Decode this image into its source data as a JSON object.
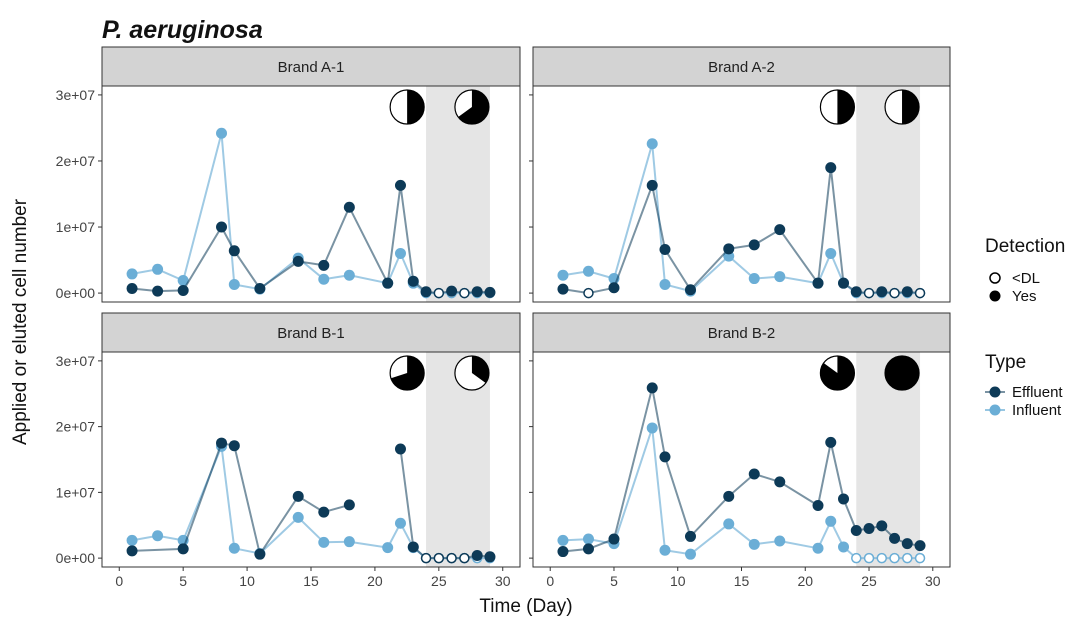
{
  "title": "P. aeruginosa",
  "xlabel": "Time (Day)",
  "ylabel": "Applied or eluted cell number",
  "colors": {
    "Effluent": "#0d3a57",
    "Influent": "#6baed6",
    "shade": "#e5e5e5",
    "strip": "#d3d3d3"
  },
  "legend": {
    "detection": {
      "title": "Detection",
      "items": [
        "<DL",
        "Yes"
      ]
    },
    "type": {
      "title": "Type",
      "items": [
        "Effluent",
        "Influent"
      ]
    }
  },
  "chart_data": {
    "type": "line",
    "xlim": [
      0,
      30
    ],
    "ylim": [
      0,
      30000000
    ],
    "xticks": [
      0,
      5,
      10,
      15,
      20,
      25,
      30
    ],
    "yticks": [
      0,
      10000000,
      20000000,
      30000000
    ],
    "ytick_labels": [
      "0e+00",
      "1e+07",
      "2e+07",
      "3e+07"
    ],
    "shaded_region": [
      24,
      29
    ],
    "grid": false,
    "legend_position": "right",
    "panels": [
      {
        "label": "Brand A-1",
        "pies": [
          0.5,
          0.65
        ],
        "series": [
          {
            "name": "Effluent",
            "points": [
              {
                "x": 1,
                "y": 700000,
                "d": "Yes"
              },
              {
                "x": 3,
                "y": 300000,
                "d": "Yes"
              },
              {
                "x": 5,
                "y": 400000,
                "d": "Yes"
              },
              {
                "x": 8,
                "y": 10000000,
                "d": "Yes"
              },
              {
                "x": 9,
                "y": 6400000,
                "d": "Yes"
              },
              {
                "x": 11,
                "y": 700000,
                "d": "Yes"
              },
              {
                "x": 14,
                "y": 4800000,
                "d": "Yes"
              },
              {
                "x": 16,
                "y": 4200000,
                "d": "Yes"
              },
              {
                "x": 18,
                "y": 13000000,
                "d": "Yes"
              },
              {
                "x": 21,
                "y": 1500000,
                "d": "Yes"
              },
              {
                "x": 22,
                "y": 16300000,
                "d": "Yes"
              },
              {
                "x": 23,
                "y": 1800000,
                "d": "Yes"
              },
              {
                "x": 24,
                "y": 200000,
                "d": "Yes"
              },
              {
                "x": 25,
                "y": 0,
                "d": "<DL"
              },
              {
                "x": 26,
                "y": 300000,
                "d": "Yes"
              },
              {
                "x": 27,
                "y": 0,
                "d": "<DL"
              },
              {
                "x": 28,
                "y": 200000,
                "d": "Yes"
              },
              {
                "x": 29,
                "y": 100000,
                "d": "Yes"
              }
            ]
          },
          {
            "name": "Influent",
            "points": [
              {
                "x": 1,
                "y": 2900000,
                "d": "Yes"
              },
              {
                "x": 3,
                "y": 3600000,
                "d": "Yes"
              },
              {
                "x": 5,
                "y": 1900000,
                "d": "Yes"
              },
              {
                "x": 8,
                "y": 24200000,
                "d": "Yes"
              },
              {
                "x": 9,
                "y": 1300000,
                "d": "Yes"
              },
              {
                "x": 11,
                "y": 600000,
                "d": "Yes"
              },
              {
                "x": 14,
                "y": 5300000,
                "d": "Yes"
              },
              {
                "x": 16,
                "y": 2100000,
                "d": "Yes"
              },
              {
                "x": 18,
                "y": 2700000,
                "d": "Yes"
              },
              {
                "x": 21,
                "y": 1500000,
                "d": "Yes"
              },
              {
                "x": 22,
                "y": 6000000,
                "d": "Yes"
              },
              {
                "x": 23,
                "y": 1500000,
                "d": "Yes"
              },
              {
                "x": 24,
                "y": 0,
                "d": "<DL"
              },
              {
                "x": 25,
                "y": 0,
                "d": "<DL"
              },
              {
                "x": 26,
                "y": 0,
                "d": "<DL"
              },
              {
                "x": 27,
                "y": 0,
                "d": "<DL"
              },
              {
                "x": 28,
                "y": 0,
                "d": "<DL"
              },
              {
                "x": 29,
                "y": 0,
                "d": "<DL"
              }
            ]
          }
        ]
      },
      {
        "label": "Brand A-2",
        "pies": [
          0.5,
          0.5
        ],
        "series": [
          {
            "name": "Effluent",
            "points": [
              {
                "x": 1,
                "y": 600000,
                "d": "Yes"
              },
              {
                "x": 3,
                "y": 0,
                "d": "<DL"
              },
              {
                "x": 5,
                "y": 800000,
                "d": "Yes"
              },
              {
                "x": 8,
                "y": 16300000,
                "d": "Yes"
              },
              {
                "x": 9,
                "y": 6600000,
                "d": "Yes"
              },
              {
                "x": 11,
                "y": 500000,
                "d": "Yes"
              },
              {
                "x": 14,
                "y": 6700000,
                "d": "Yes"
              },
              {
                "x": 16,
                "y": 7300000,
                "d": "Yes"
              },
              {
                "x": 18,
                "y": 9600000,
                "d": "Yes"
              },
              {
                "x": 21,
                "y": 1500000,
                "d": "Yes"
              },
              {
                "x": 22,
                "y": 19000000,
                "d": "Yes"
              },
              {
                "x": 23,
                "y": 1500000,
                "d": "Yes"
              },
              {
                "x": 24,
                "y": 200000,
                "d": "Yes"
              },
              {
                "x": 25,
                "y": 0,
                "d": "<DL"
              },
              {
                "x": 26,
                "y": 200000,
                "d": "Yes"
              },
              {
                "x": 27,
                "y": 0,
                "d": "<DL"
              },
              {
                "x": 28,
                "y": 200000,
                "d": "Yes"
              },
              {
                "x": 29,
                "y": 0,
                "d": "<DL"
              }
            ]
          },
          {
            "name": "Influent",
            "points": [
              {
                "x": 1,
                "y": 2700000,
                "d": "Yes"
              },
              {
                "x": 3,
                "y": 3300000,
                "d": "Yes"
              },
              {
                "x": 5,
                "y": 2200000,
                "d": "Yes"
              },
              {
                "x": 8,
                "y": 22600000,
                "d": "Yes"
              },
              {
                "x": 9,
                "y": 1300000,
                "d": "Yes"
              },
              {
                "x": 11,
                "y": 300000,
                "d": "Yes"
              },
              {
                "x": 14,
                "y": 5600000,
                "d": "Yes"
              },
              {
                "x": 16,
                "y": 2200000,
                "d": "Yes"
              },
              {
                "x": 18,
                "y": 2500000,
                "d": "Yes"
              },
              {
                "x": 21,
                "y": 1500000,
                "d": "Yes"
              },
              {
                "x": 22,
                "y": 6000000,
                "d": "Yes"
              },
              {
                "x": 23,
                "y": 1500000,
                "d": "Yes"
              },
              {
                "x": 24,
                "y": 0,
                "d": "<DL"
              },
              {
                "x": 25,
                "y": 0,
                "d": "<DL"
              },
              {
                "x": 26,
                "y": 0,
                "d": "<DL"
              },
              {
                "x": 27,
                "y": 0,
                "d": "<DL"
              },
              {
                "x": 28,
                "y": 0,
                "d": "<DL"
              },
              {
                "x": 29,
                "y": 0,
                "d": "<DL"
              }
            ]
          }
        ]
      },
      {
        "label": "Brand B-1",
        "pies": [
          0.7,
          0.35
        ],
        "series": [
          {
            "name": "Effluent",
            "points": [
              {
                "x": 1,
                "y": 1100000,
                "d": "Yes"
              },
              {
                "x": 5,
                "y": 1400000,
                "d": "Yes"
              },
              {
                "x": 8,
                "y": 17500000,
                "d": "Yes"
              },
              {
                "x": 9,
                "y": 17100000,
                "d": "Yes"
              },
              {
                "x": 11,
                "y": 600000,
                "d": "Yes"
              },
              {
                "x": 14,
                "y": 9400000,
                "d": "Yes"
              },
              {
                "x": 16,
                "y": 7000000,
                "d": "Yes"
              },
              {
                "x": 18,
                "y": 8100000,
                "d": "Yes"
              },
              {
                "x": 22,
                "y": 16600000,
                "d": "Yes",
                "gap": true
              },
              {
                "x": 23,
                "y": 1700000,
                "d": "Yes"
              },
              {
                "x": 24,
                "y": 0,
                "d": "<DL"
              },
              {
                "x": 25,
                "y": 0,
                "d": "<DL"
              },
              {
                "x": 26,
                "y": 0,
                "d": "<DL"
              },
              {
                "x": 27,
                "y": 0,
                "d": "<DL"
              },
              {
                "x": 28,
                "y": 400000,
                "d": "Yes"
              },
              {
                "x": 29,
                "y": 200000,
                "d": "Yes"
              }
            ]
          },
          {
            "name": "Influent",
            "points": [
              {
                "x": 1,
                "y": 2700000,
                "d": "Yes"
              },
              {
                "x": 3,
                "y": 3400000,
                "d": "Yes"
              },
              {
                "x": 5,
                "y": 2700000,
                "d": "Yes"
              },
              {
                "x": 8,
                "y": 17000000,
                "d": "Yes"
              },
              {
                "x": 9,
                "y": 1500000,
                "d": "Yes"
              },
              {
                "x": 11,
                "y": 700000,
                "d": "Yes"
              },
              {
                "x": 14,
                "y": 6200000,
                "d": "Yes"
              },
              {
                "x": 16,
                "y": 2400000,
                "d": "Yes"
              },
              {
                "x": 18,
                "y": 2500000,
                "d": "Yes"
              },
              {
                "x": 21,
                "y": 1600000,
                "d": "Yes"
              },
              {
                "x": 22,
                "y": 5300000,
                "d": "Yes"
              },
              {
                "x": 23,
                "y": 1600000,
                "d": "Yes"
              },
              {
                "x": 24,
                "y": 0,
                "d": "<DL"
              },
              {
                "x": 25,
                "y": 0,
                "d": "<DL"
              },
              {
                "x": 26,
                "y": 0,
                "d": "<DL"
              },
              {
                "x": 27,
                "y": 0,
                "d": "<DL"
              },
              {
                "x": 28,
                "y": 0,
                "d": "<DL"
              },
              {
                "x": 29,
                "y": 0,
                "d": "<DL"
              }
            ]
          }
        ]
      },
      {
        "label": "Brand B-2",
        "pies": [
          0.85,
          1.0
        ],
        "series": [
          {
            "name": "Effluent",
            "points": [
              {
                "x": 1,
                "y": 1000000,
                "d": "Yes"
              },
              {
                "x": 3,
                "y": 1400000,
                "d": "Yes"
              },
              {
                "x": 5,
                "y": 2900000,
                "d": "Yes"
              },
              {
                "x": 8,
                "y": 25900000,
                "d": "Yes"
              },
              {
                "x": 9,
                "y": 15400000,
                "d": "Yes"
              },
              {
                "x": 11,
                "y": 3300000,
                "d": "Yes"
              },
              {
                "x": 14,
                "y": 9400000,
                "d": "Yes"
              },
              {
                "x": 16,
                "y": 12800000,
                "d": "Yes"
              },
              {
                "x": 18,
                "y": 11600000,
                "d": "Yes"
              },
              {
                "x": 21,
                "y": 8000000,
                "d": "Yes"
              },
              {
                "x": 22,
                "y": 17600000,
                "d": "Yes"
              },
              {
                "x": 23,
                "y": 9000000,
                "d": "Yes"
              },
              {
                "x": 24,
                "y": 4200000,
                "d": "Yes"
              },
              {
                "x": 25,
                "y": 4500000,
                "d": "Yes"
              },
              {
                "x": 26,
                "y": 4900000,
                "d": "Yes"
              },
              {
                "x": 27,
                "y": 3000000,
                "d": "Yes"
              },
              {
                "x": 28,
                "y": 2200000,
                "d": "Yes"
              },
              {
                "x": 29,
                "y": 1900000,
                "d": "Yes"
              }
            ]
          },
          {
            "name": "Influent",
            "points": [
              {
                "x": 1,
                "y": 2700000,
                "d": "Yes"
              },
              {
                "x": 3,
                "y": 2900000,
                "d": "Yes"
              },
              {
                "x": 5,
                "y": 2200000,
                "d": "Yes"
              },
              {
                "x": 8,
                "y": 19800000,
                "d": "Yes"
              },
              {
                "x": 9,
                "y": 1200000,
                "d": "Yes"
              },
              {
                "x": 11,
                "y": 600000,
                "d": "Yes"
              },
              {
                "x": 14,
                "y": 5200000,
                "d": "Yes"
              },
              {
                "x": 16,
                "y": 2100000,
                "d": "Yes"
              },
              {
                "x": 18,
                "y": 2600000,
                "d": "Yes"
              },
              {
                "x": 21,
                "y": 1500000,
                "d": "Yes"
              },
              {
                "x": 22,
                "y": 5600000,
                "d": "Yes"
              },
              {
                "x": 23,
                "y": 1700000,
                "d": "Yes"
              },
              {
                "x": 24,
                "y": 0,
                "d": "<DL"
              },
              {
                "x": 25,
                "y": 0,
                "d": "<DL"
              },
              {
                "x": 26,
                "y": 0,
                "d": "<DL"
              },
              {
                "x": 27,
                "y": 0,
                "d": "<DL"
              },
              {
                "x": 28,
                "y": 0,
                "d": "<DL"
              },
              {
                "x": 29,
                "y": 0,
                "d": "<DL"
              }
            ]
          }
        ]
      }
    ]
  }
}
